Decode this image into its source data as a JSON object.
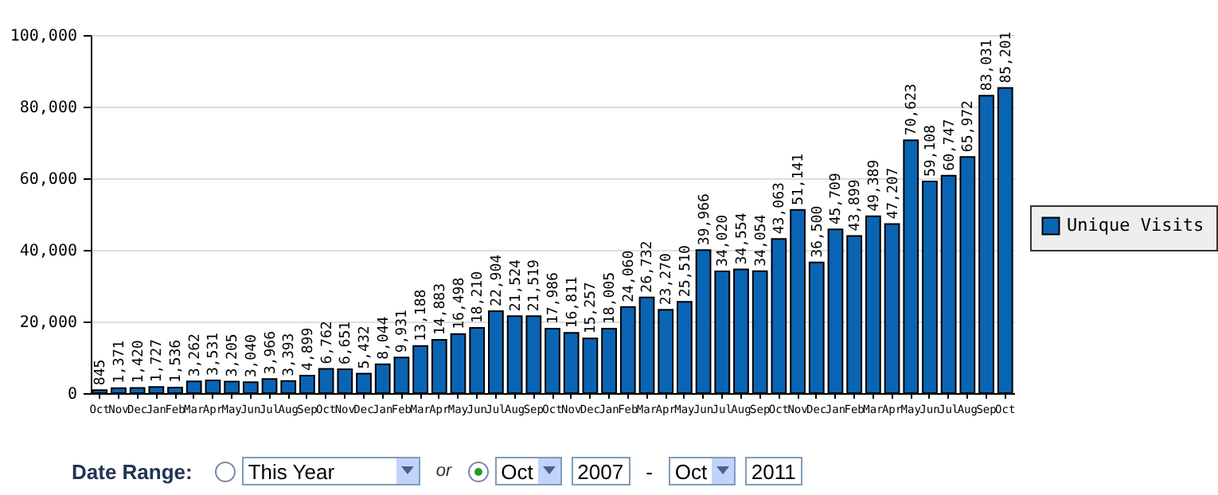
{
  "chart_data": {
    "type": "bar",
    "categories": [
      "Oct",
      "Nov",
      "Dec",
      "Jan",
      "Feb",
      "Mar",
      "Apr",
      "May",
      "Jun",
      "Jul",
      "Aug",
      "Sep",
      "Oct",
      "Nov",
      "Dec",
      "Jan",
      "Feb",
      "Mar",
      "Apr",
      "May",
      "Jun",
      "Jul",
      "Aug",
      "Sep",
      "Oct",
      "Nov",
      "Dec",
      "Jan",
      "Feb",
      "Mar",
      "Apr",
      "May",
      "Jun",
      "Jul",
      "Aug",
      "Sep",
      "Oct",
      "Nov",
      "Dec",
      "Jan",
      "Feb",
      "Mar",
      "Apr",
      "May",
      "Jun",
      "Jul",
      "Aug",
      "Sep",
      "Oct"
    ],
    "series": [
      {
        "name": "Unique Visits",
        "color": "#0a64b4",
        "values": [
          845,
          1371,
          1420,
          1727,
          1536,
          3262,
          3531,
          3205,
          3040,
          3966,
          3393,
          4899,
          6762,
          6651,
          5432,
          8044,
          9931,
          13188,
          14883,
          16498,
          18210,
          22904,
          21524,
          21519,
          17986,
          16811,
          15257,
          18005,
          24060,
          26732,
          23270,
          25510,
          39966,
          34020,
          34554,
          34054,
          43063,
          51141,
          36500,
          45709,
          43899,
          49389,
          47207,
          70623,
          59108,
          60747,
          65972,
          83031,
          85201
        ]
      }
    ],
    "value_labels": [
      "845",
      "1,371",
      "1,420",
      "1,727",
      "1,536",
      "3,262",
      "3,531",
      "3,205",
      "3,040",
      "3,966",
      "3,393",
      "4,899",
      "6,762",
      "6,651",
      "5,432",
      "8,044",
      "9,931",
      "13,188",
      "14,883",
      "16,498",
      "18,210",
      "22,904",
      "21,524",
      "21,519",
      "17,986",
      "16,811",
      "15,257",
      "18,005",
      "24,060",
      "26,732",
      "23,270",
      "25,510",
      "39,966",
      "34,020",
      "34,554",
      "34,054",
      "43,063",
      "51,141",
      "36,500",
      "45,709",
      "43,899",
      "49,389",
      "47,207",
      "70,623",
      "59,108",
      "60,747",
      "65,972",
      "83,031",
      "85,201"
    ],
    "ylim": [
      0,
      100000
    ],
    "yticks": [
      0,
      {
        "value": 20000,
        "label": "20,000"
      },
      {
        "value": 40000,
        "label": "40,000"
      },
      {
        "value": 60000,
        "label": "60,000"
      },
      {
        "value": 80000,
        "label": "80,000"
      },
      {
        "value": 100000,
        "label": "100,000"
      }
    ],
    "grid": "y",
    "legend": "right",
    "annotations": [
      "Date Range:",
      "This Year",
      "or",
      "Oct",
      "2007",
      "-",
      "Oct",
      "2011"
    ]
  }
}
